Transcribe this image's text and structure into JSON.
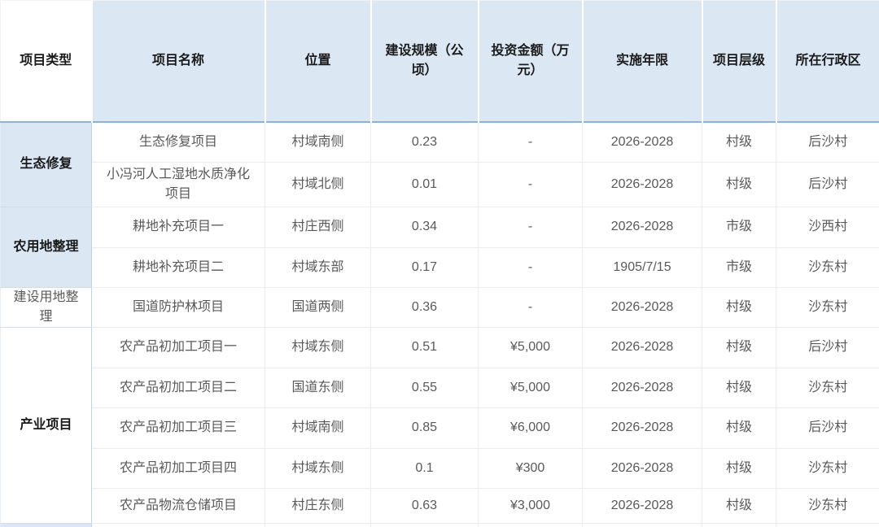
{
  "table": {
    "columns": [
      {
        "label": "项目类型"
      },
      {
        "label": "项目名称"
      },
      {
        "label": "位置"
      },
      {
        "label": "建设规模（公顷）"
      },
      {
        "label": "投资金额（万元）"
      },
      {
        "label": "实施年限"
      },
      {
        "label": "项目层级"
      },
      {
        "label": "所在行政区"
      }
    ],
    "groups": [
      {
        "label": "生态修复",
        "style": "blue-bold",
        "rows": [
          {
            "cells": [
              "生态修复项目",
              "村域南侧",
              "0.23",
              "-",
              "2026-2028",
              "村级",
              "后沙村"
            ]
          },
          {
            "cells": [
              "小冯河人工湿地水质净化项目",
              "村域北侧",
              "0.01",
              "-",
              "2026-2028",
              "村级",
              "后沙村"
            ]
          }
        ]
      },
      {
        "label": "农用地整理",
        "style": "blue-bold",
        "rows": [
          {
            "cells": [
              "耕地补充项目一",
              "村庄西侧",
              "0.34",
              "-",
              "2026-2028",
              "市级",
              "沙西村"
            ]
          },
          {
            "cells": [
              "耕地补充项目二",
              "村域东部",
              "0.17",
              "-",
              "1905/7/15",
              "市级",
              "沙东村"
            ]
          }
        ]
      },
      {
        "label": "建设用地整理",
        "style": "white-plain",
        "rows": [
          {
            "cells": [
              "国道防护林项目",
              "国道两侧",
              "0.36",
              "-",
              "2026-2028",
              "村级",
              "沙东村"
            ]
          }
        ]
      },
      {
        "label": "产业项目",
        "style": "white-bold",
        "rows": [
          {
            "cells": [
              "农产品初加工项目一",
              "村域东侧",
              "0.51",
              "¥5,000",
              "2026-2028",
              "村级",
              "后沙村"
            ]
          },
          {
            "cells": [
              "农产品初加工项目二",
              "国道东侧",
              "0.55",
              "¥5,000",
              "2026-2028",
              "村级",
              "沙东村"
            ]
          },
          {
            "cells": [
              "农产品初加工项目三",
              "村域南侧",
              "0.85",
              "¥6,000",
              "2026-2028",
              "村级",
              "后沙村"
            ]
          },
          {
            "cells": [
              "农产品初加工项目四",
              "村域东侧",
              "0.1",
              "¥300",
              "2026-2028",
              "村级",
              "沙东村"
            ]
          },
          {
            "cells": [
              "农产品物流仓储项目",
              "村庄东侧",
              "0.63",
              "¥3,000",
              "2026-2028",
              "村级",
              "沙东村"
            ]
          }
        ]
      }
    ],
    "colors": {
      "header_bg": "#dbe8f4",
      "header_divider": "#8cb2d6",
      "header_text": "#1a1a1a",
      "body_text": "#595959",
      "cell_border": "#ececec",
      "group_cell_border": "#bcd4e8"
    }
  }
}
